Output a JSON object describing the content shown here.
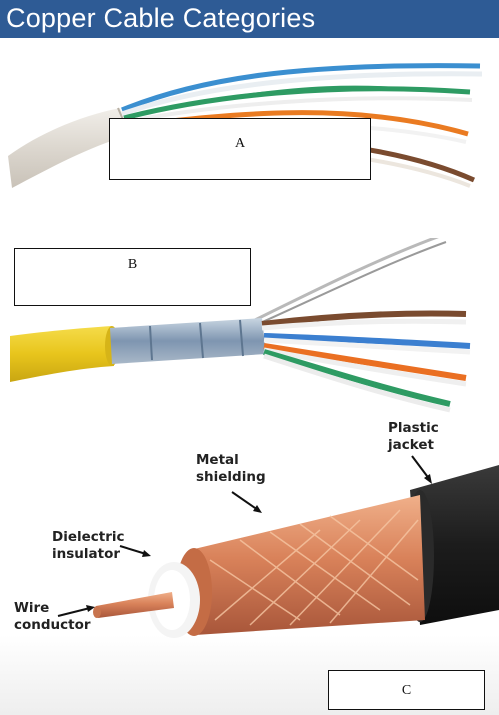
{
  "header": {
    "title": "Copper Cable Categories"
  },
  "label_boxes": {
    "a": "A",
    "b": "B",
    "c": "C"
  },
  "coax_callouts": {
    "plastic_jacket": [
      "Plastic",
      "jacket"
    ],
    "metal_shielding": [
      "Metal",
      "shielding"
    ],
    "dielectric_insulator": [
      "Dielectric",
      "insulator"
    ],
    "wire_conductor": [
      "Wire",
      "conductor"
    ]
  },
  "colors": {
    "title_bar": "#2e5b95",
    "copper": "#d9825a",
    "yellow_jacket": "#e8c51c",
    "black_jacket": "#1c1c1c"
  }
}
